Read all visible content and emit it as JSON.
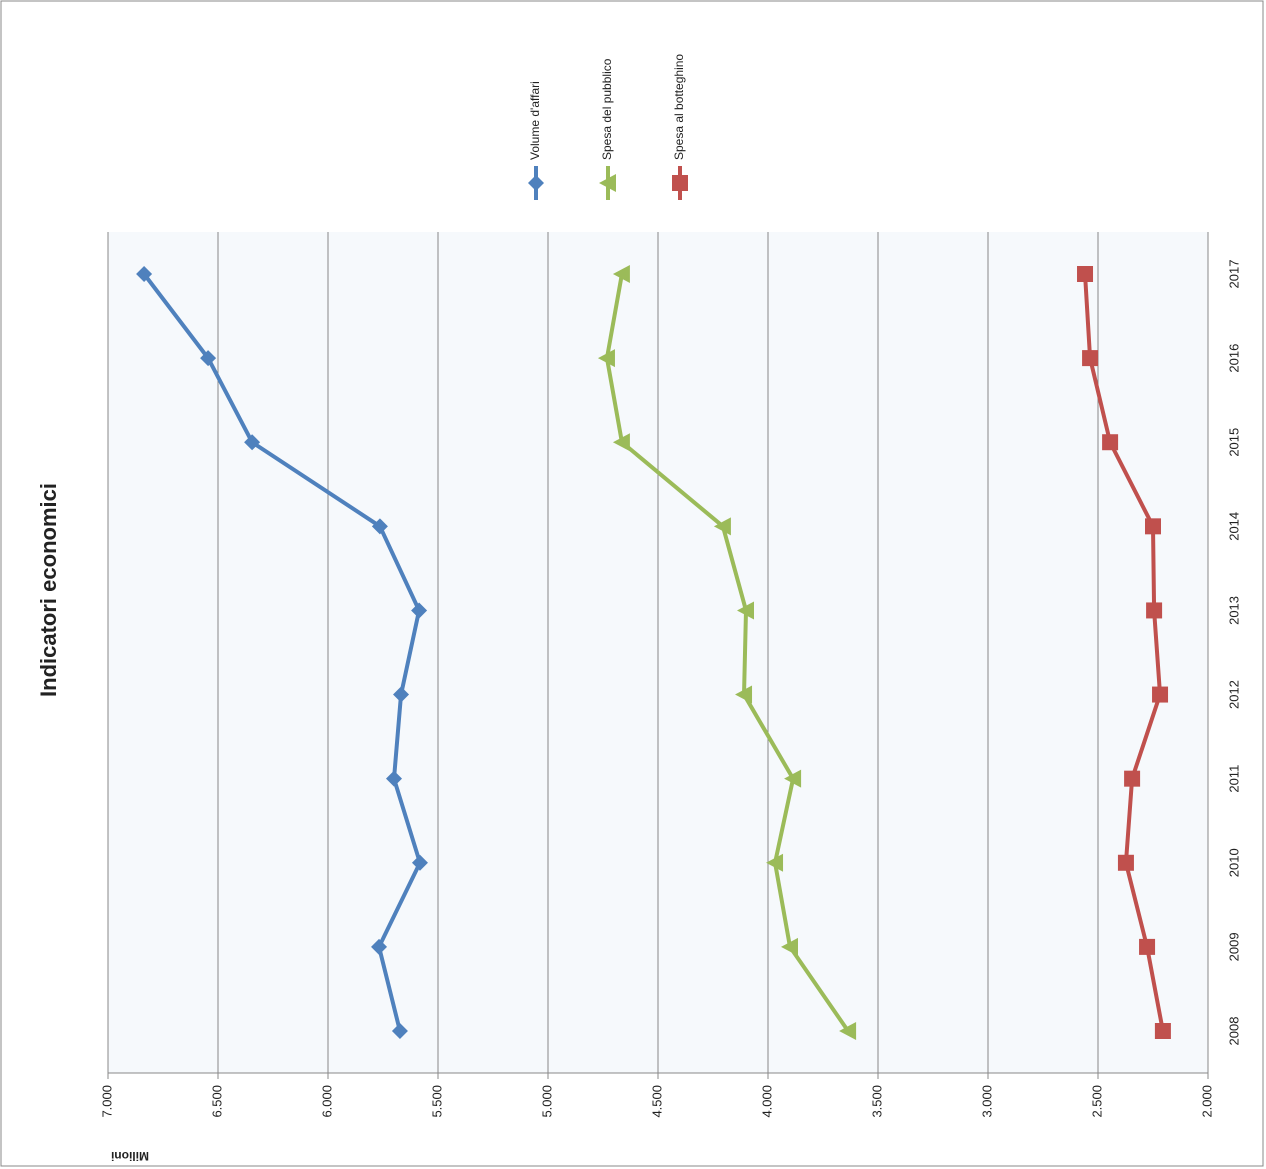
{
  "chart_data": {
    "type": "line",
    "title": "Indicatori economici",
    "y_axis_label": "Milioni",
    "categories": [
      "2008",
      "2009",
      "2010",
      "2011",
      "2012",
      "2013",
      "2014",
      "2015",
      "2016",
      "2017"
    ],
    "series": [
      {
        "name": "Volume d'affari",
        "color": "#4f81bd",
        "marker": "diamond",
        "values": [
          5673,
          5768,
          5582,
          5700,
          5668,
          5586,
          5764,
          6345,
          6545,
          6836
        ]
      },
      {
        "name": "Spesa del pubblico",
        "color": "#9bbb59",
        "marker": "triangle",
        "values": [
          3636,
          3900,
          3968,
          3886,
          4109,
          4100,
          4205,
          4664,
          4732,
          4664
        ]
      },
      {
        "name": "Spesa al botteghino",
        "color": "#c0504d",
        "marker": "square",
        "values": [
          2205,
          2277,
          2373,
          2345,
          2218,
          2245,
          2250,
          2445,
          2536,
          2559
        ]
      }
    ],
    "ylim": [
      2000,
      7000
    ],
    "yticks": [
      {
        "value": 2000,
        "label": "2.000"
      },
      {
        "value": 2500,
        "label": "2.500"
      },
      {
        "value": 3000,
        "label": "3.000"
      },
      {
        "value": 3500,
        "label": "3.500"
      },
      {
        "value": 4000,
        "label": "4.000"
      },
      {
        "value": 4500,
        "label": "4.500"
      },
      {
        "value": 5000,
        "label": "5.000"
      },
      {
        "value": 5500,
        "label": "5.500"
      },
      {
        "value": 6000,
        "label": "6.000"
      },
      {
        "value": 6500,
        "label": "6.500"
      },
      {
        "value": 7000,
        "label": "7.000"
      }
    ],
    "grid": true
  }
}
